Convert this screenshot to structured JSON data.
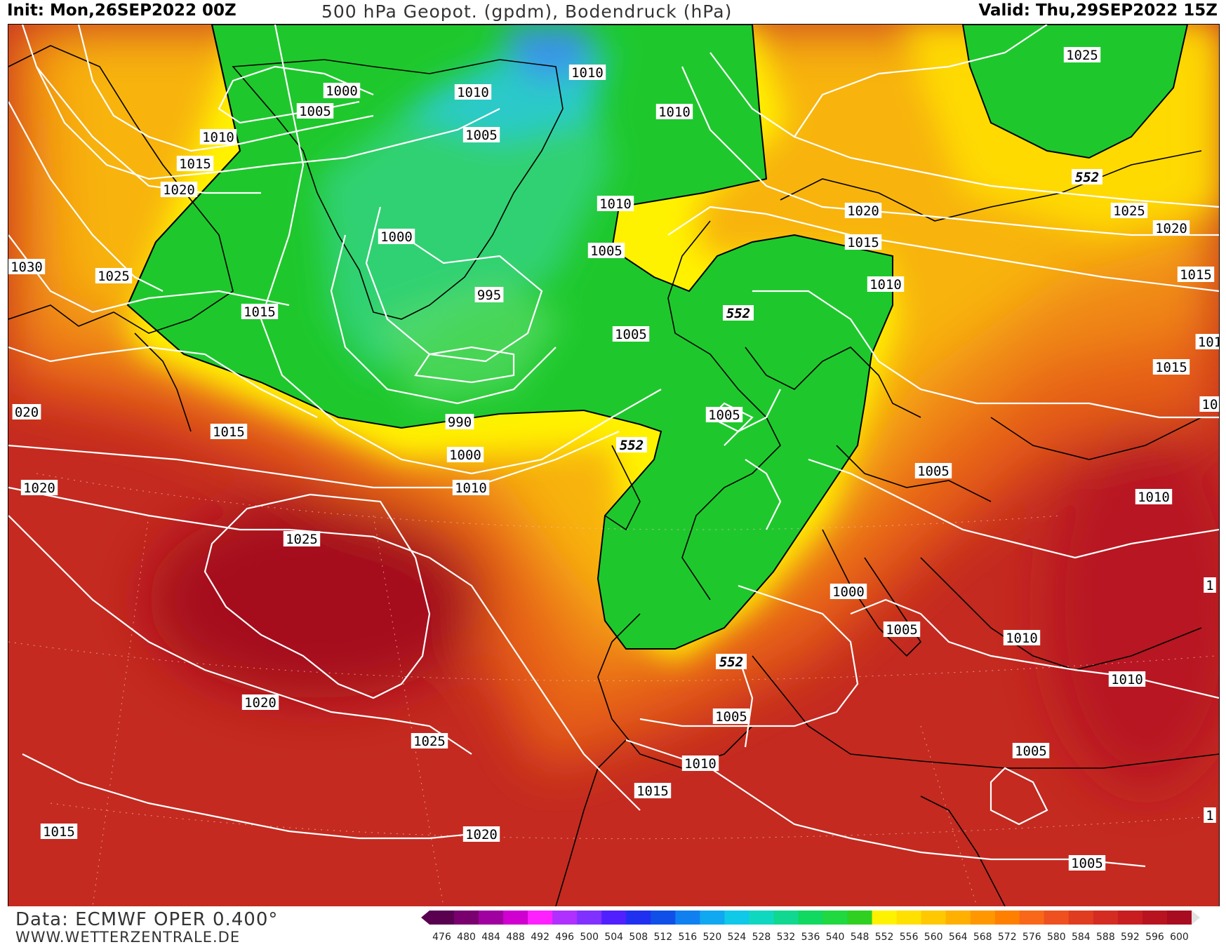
{
  "header": {
    "init": "Init: Mon,26SEP2022 00Z",
    "title": "500 hPa Geopot. (gpdm), Bodendruck (hPa)",
    "valid": "Valid: Thu,29SEP2022 15Z"
  },
  "footer": {
    "source": "Data: ECMWF OPER 0.400°",
    "site": "WWW.WETTERZENTRALE.DE"
  },
  "colors": {
    "bg_deep_red": "#b0171e",
    "red": "#d0401c",
    "orange_red": "#e05a1a",
    "orange": "#ee8a12",
    "amber": "#f6b40a",
    "yellow": "#fff200",
    "green": "#19c826",
    "green_light": "#4dd96a",
    "teal": "#2bd4a6",
    "cyan": "#3ec3e8",
    "blue": "#3a7de8",
    "isobar": "#ffffff",
    "coast": "#000000"
  },
  "scale": {
    "values": [
      "476",
      "480",
      "484",
      "488",
      "492",
      "496",
      "500",
      "504",
      "508",
      "512",
      "516",
      "520",
      "524",
      "528",
      "532",
      "536",
      "540",
      "548",
      "552",
      "556",
      "560",
      "564",
      "568",
      "572",
      "576",
      "580",
      "584",
      "588",
      "592",
      "596",
      "600"
    ],
    "colors": [
      "#5a0050",
      "#7a0070",
      "#a000a0",
      "#d000d0",
      "#ff20ff",
      "#b030ff",
      "#8030ff",
      "#5020ff",
      "#2030f0",
      "#1050e8",
      "#1080f0",
      "#10a8f0",
      "#10c8e8",
      "#10d8c0",
      "#10d890",
      "#10d860",
      "#20d840",
      "#30d020",
      "#fff200",
      "#ffe000",
      "#ffc800",
      "#ffb000",
      "#ff9800",
      "#ff8000",
      "#f86818",
      "#ee5020",
      "#e03c20",
      "#d42c22",
      "#c81e22",
      "#b81420",
      "#a80c20"
    ]
  },
  "isobar_labels": [
    {
      "text": "1000",
      "px": "v1"
    },
    {
      "text": "1005",
      "px": "v2"
    },
    {
      "text": "1010",
      "px": "v3"
    },
    {
      "text": "1015",
      "px": "v4"
    },
    {
      "text": "1020",
      "px": "v5"
    },
    {
      "text": "1030",
      "px": "v6"
    },
    {
      "text": "1025",
      "px": "v7"
    },
    {
      "text": "1015",
      "px": "v8"
    },
    {
      "text": "1010",
      "px": "v9"
    },
    {
      "text": "1005",
      "px": "v10"
    },
    {
      "text": "1010",
      "px": "v11"
    },
    {
      "text": "1010",
      "px": "v12"
    },
    {
      "text": "1000",
      "px": "v13"
    },
    {
      "text": "995",
      "px": "v14"
    },
    {
      "text": "1005",
      "px": "v15"
    },
    {
      "text": "1010",
      "px": "v16"
    },
    {
      "text": "1005",
      "px": "v17"
    },
    {
      "text": "020",
      "px": "v18"
    },
    {
      "text": "1015",
      "px": "v19"
    },
    {
      "text": "990",
      "px": "v20"
    },
    {
      "text": "1000",
      "px": "v21"
    },
    {
      "text": "1010",
      "px": "v22"
    },
    {
      "text": "1020",
      "px": "v23"
    },
    {
      "text": "1025",
      "px": "v24"
    },
    {
      "text": "1020",
      "px": "v25"
    },
    {
      "text": "1025",
      "px": "v26"
    },
    {
      "text": "1015",
      "px": "v27"
    },
    {
      "text": "1020",
      "px": "v28"
    },
    {
      "text": "1025",
      "px": "v29"
    },
    {
      "text": "1025",
      "px": "v30"
    },
    {
      "text": "1020",
      "px": "v31"
    },
    {
      "text": "1015",
      "px": "v32"
    },
    {
      "text": "1020",
      "px": "v33"
    },
    {
      "text": "1015",
      "px": "v34"
    },
    {
      "text": "1010",
      "px": "v35"
    },
    {
      "text": "101",
      "px": "v36"
    },
    {
      "text": "1015",
      "px": "v37"
    },
    {
      "text": "10",
      "px": "v38"
    },
    {
      "text": "1005",
      "px": "v39"
    },
    {
      "text": "1005",
      "px": "v40"
    },
    {
      "text": "1010",
      "px": "v41"
    },
    {
      "text": "1000",
      "px": "v42"
    },
    {
      "text": "1005",
      "px": "v43"
    },
    {
      "text": "1010",
      "px": "v44"
    },
    {
      "text": "1010",
      "px": "v45"
    },
    {
      "text": "1005",
      "px": "v46"
    },
    {
      "text": "1010",
      "px": "v47"
    },
    {
      "text": "1015",
      "px": "v48"
    },
    {
      "text": "1005",
      "px": "v49"
    },
    {
      "text": "1005",
      "px": "v50"
    },
    {
      "text": "1",
      "px": "v51"
    },
    {
      "text": "1",
      "px": "v52"
    }
  ],
  "height_labels": [
    "552",
    "552",
    "552",
    "552"
  ]
}
